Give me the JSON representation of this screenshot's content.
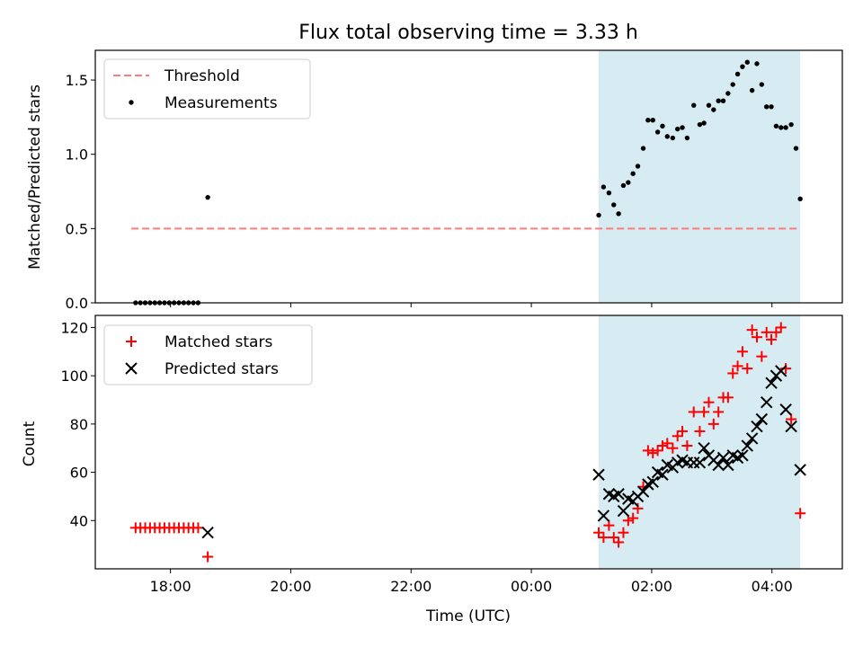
{
  "chart_data": {
    "title": "Flux total observing time = 3.33 h",
    "xlabel": "Time (UTC)",
    "x_unit": "hours (UTC, continuing past midnight: 24 = 00:00, 26 = 02:00, 28 = 04:00)",
    "xlim": [
      16.75,
      29.17
    ],
    "x_ticks": [
      {
        "value": 18,
        "label": "18:00"
      },
      {
        "value": 20,
        "label": "20:00"
      },
      {
        "value": 22,
        "label": "22:00"
      },
      {
        "value": 24,
        "label": "00:00"
      },
      {
        "value": 26,
        "label": "02:00"
      },
      {
        "value": 28,
        "label": "04:00"
      }
    ],
    "shaded_span": {
      "start": 25.12,
      "end": 28.47,
      "color": "#add8e6"
    },
    "panels": [
      {
        "type": "scatter",
        "ylabel": "Matched/Predicted stars",
        "ylim": [
          0,
          1.7
        ],
        "y_ticks": [
          "0.0",
          "0.5",
          "1.0",
          "1.5"
        ],
        "y_tick_values": [
          0,
          0.5,
          1.0,
          1.5
        ],
        "legend_position": "upper-left",
        "threshold": {
          "name": "Threshold",
          "value": 0.5,
          "x_start": 17.35,
          "x_end": 28.47,
          "color": "#ff7b7b"
        },
        "series": [
          {
            "name": "Measurements",
            "color": "#000000",
            "marker": "dot",
            "points": [
              [
                17.42,
                0
              ],
              [
                17.5,
                0
              ],
              [
                17.58,
                0
              ],
              [
                17.66,
                0
              ],
              [
                17.74,
                0
              ],
              [
                17.82,
                0
              ],
              [
                17.9,
                0
              ],
              [
                17.98,
                0
              ],
              [
                18.06,
                0
              ],
              [
                18.14,
                0
              ],
              [
                18.22,
                0
              ],
              [
                18.3,
                0
              ],
              [
                18.38,
                0
              ],
              [
                18.46,
                0
              ],
              [
                18.62,
                0.71
              ],
              [
                25.12,
                0.59
              ],
              [
                25.2,
                0.78
              ],
              [
                25.29,
                0.74
              ],
              [
                25.37,
                0.66
              ],
              [
                25.45,
                0.6
              ],
              [
                25.53,
                0.79
              ],
              [
                25.61,
                0.81
              ],
              [
                25.69,
                0.87
              ],
              [
                25.77,
                0.92
              ],
              [
                25.86,
                1.04
              ],
              [
                25.94,
                1.23
              ],
              [
                26.02,
                1.23
              ],
              [
                26.1,
                1.15
              ],
              [
                26.18,
                1.19
              ],
              [
                26.26,
                1.12
              ],
              [
                26.35,
                1.11
              ],
              [
                26.43,
                1.17
              ],
              [
                26.51,
                1.18
              ],
              [
                26.59,
                1.11
              ],
              [
                26.7,
                1.33
              ],
              [
                26.8,
                1.2
              ],
              [
                26.87,
                1.21
              ],
              [
                26.95,
                1.33
              ],
              [
                27.03,
                1.3
              ],
              [
                27.11,
                1.36
              ],
              [
                27.19,
                1.36
              ],
              [
                27.27,
                1.41
              ],
              [
                27.35,
                1.47
              ],
              [
                27.43,
                1.54
              ],
              [
                27.51,
                1.59
              ],
              [
                27.59,
                1.62
              ],
              [
                27.67,
                1.43
              ],
              [
                27.75,
                1.61
              ],
              [
                27.83,
                1.47
              ],
              [
                27.91,
                1.32
              ],
              [
                27.99,
                1.32
              ],
              [
                28.07,
                1.19
              ],
              [
                28.15,
                1.18
              ],
              [
                28.23,
                1.18
              ],
              [
                28.32,
                1.2
              ],
              [
                28.4,
                1.04
              ],
              [
                28.47,
                0.7
              ]
            ]
          }
        ]
      },
      {
        "type": "scatter",
        "ylabel": "Count",
        "ylim": [
          20,
          125
        ],
        "y_ticks": [
          "40",
          "60",
          "80",
          "100",
          "120"
        ],
        "y_tick_values": [
          40,
          60,
          80,
          100,
          120
        ],
        "legend_position": "upper-left",
        "series": [
          {
            "name": "Matched stars",
            "color": "#ff0000",
            "marker": "plus",
            "points": [
              [
                17.42,
                37
              ],
              [
                17.5,
                37
              ],
              [
                17.58,
                37
              ],
              [
                17.66,
                37
              ],
              [
                17.74,
                37
              ],
              [
                17.82,
                37
              ],
              [
                17.9,
                37
              ],
              [
                17.98,
                37
              ],
              [
                18.06,
                37
              ],
              [
                18.14,
                37
              ],
              [
                18.22,
                37
              ],
              [
                18.3,
                37
              ],
              [
                18.38,
                37
              ],
              [
                18.46,
                37
              ],
              [
                18.62,
                25
              ],
              [
                25.12,
                35
              ],
              [
                25.2,
                33
              ],
              [
                25.29,
                38
              ],
              [
                25.37,
                33
              ],
              [
                25.45,
                31
              ],
              [
                25.53,
                35
              ],
              [
                25.61,
                40
              ],
              [
                25.69,
                41
              ],
              [
                25.77,
                45
              ],
              [
                25.86,
                54
              ],
              [
                25.94,
                69
              ],
              [
                26.02,
                68
              ],
              [
                26.1,
                69
              ],
              [
                26.18,
                71
              ],
              [
                26.26,
                72
              ],
              [
                26.35,
                70
              ],
              [
                26.43,
                75
              ],
              [
                26.51,
                77
              ],
              [
                26.59,
                71
              ],
              [
                26.7,
                85
              ],
              [
                26.8,
                77
              ],
              [
                26.87,
                85
              ],
              [
                26.95,
                89
              ],
              [
                27.03,
                80
              ],
              [
                27.11,
                85
              ],
              [
                27.19,
                91
              ],
              [
                27.27,
                91
              ],
              [
                27.35,
                101
              ],
              [
                27.43,
                104
              ],
              [
                27.51,
                110
              ],
              [
                27.59,
                103
              ],
              [
                27.67,
                119
              ],
              [
                27.75,
                116
              ],
              [
                27.83,
                108
              ],
              [
                27.91,
                118
              ],
              [
                27.99,
                115
              ],
              [
                28.07,
                118
              ],
              [
                28.15,
                120
              ],
              [
                28.23,
                103
              ],
              [
                28.32,
                82
              ],
              [
                28.47,
                43
              ]
            ]
          },
          {
            "name": "Predicted stars",
            "color": "#000000",
            "marker": "cross",
            "points": [
              [
                18.62,
                35
              ],
              [
                25.12,
                59
              ],
              [
                25.2,
                42
              ],
              [
                25.29,
                51
              ],
              [
                25.37,
                50
              ],
              [
                25.45,
                51
              ],
              [
                25.53,
                44
              ],
              [
                25.61,
                49
              ],
              [
                25.69,
                48
              ],
              [
                25.77,
                50
              ],
              [
                25.86,
                52
              ],
              [
                25.94,
                55
              ],
              [
                26.02,
                56
              ],
              [
                26.1,
                60
              ],
              [
                26.18,
                59
              ],
              [
                26.26,
                63
              ],
              [
                26.35,
                62
              ],
              [
                26.43,
                64
              ],
              [
                26.51,
                65
              ],
              [
                26.59,
                64
              ],
              [
                26.7,
                64
              ],
              [
                26.8,
                64
              ],
              [
                26.87,
                70
              ],
              [
                26.95,
                67
              ],
              [
                27.03,
                65
              ],
              [
                27.11,
                63
              ],
              [
                27.19,
                66
              ],
              [
                27.27,
                63
              ],
              [
                27.35,
                67
              ],
              [
                27.43,
                66
              ],
              [
                27.51,
                67
              ],
              [
                27.59,
                71
              ],
              [
                27.67,
                74
              ],
              [
                27.75,
                79
              ],
              [
                27.83,
                82
              ],
              [
                27.91,
                89
              ],
              [
                27.99,
                97
              ],
              [
                28.07,
                100
              ],
              [
                28.15,
                102
              ],
              [
                28.23,
                86
              ],
              [
                28.32,
                79
              ],
              [
                28.47,
                61
              ]
            ]
          }
        ]
      }
    ]
  }
}
